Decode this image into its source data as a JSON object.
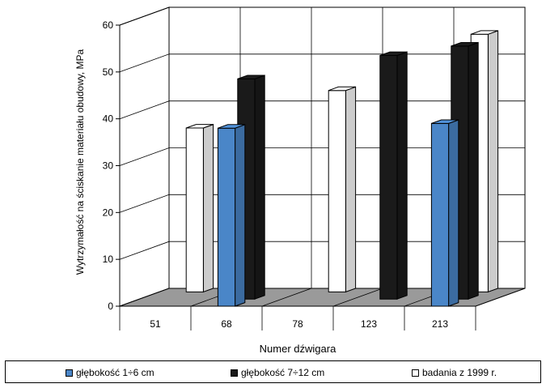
{
  "chart_data": {
    "type": "bar",
    "variant": "3d-clustered",
    "title": "",
    "xlabel": "Numer dźwigara",
    "ylabel": "Wytrzymałość na ściskanie materiału obudowy, MPa",
    "categories": [
      "51",
      "68",
      "78",
      "123",
      "213"
    ],
    "ylim": [
      0,
      60
    ],
    "yticks": [
      0,
      10,
      20,
      30,
      40,
      50,
      60
    ],
    "grid": true,
    "legend_position": "bottom",
    "series": [
      {
        "name": "głębokość 1÷6 cm",
        "color": "#4a86c8",
        "values": [
          null,
          38,
          null,
          null,
          39
        ]
      },
      {
        "name": "głębokość 7÷12 cm",
        "color": "#1a1a1a",
        "values": [
          null,
          47,
          null,
          52,
          54
        ]
      },
      {
        "name": "badania z 1999 r.",
        "color": "#ffffff",
        "values": [
          35,
          null,
          43,
          null,
          55
        ]
      }
    ]
  }
}
